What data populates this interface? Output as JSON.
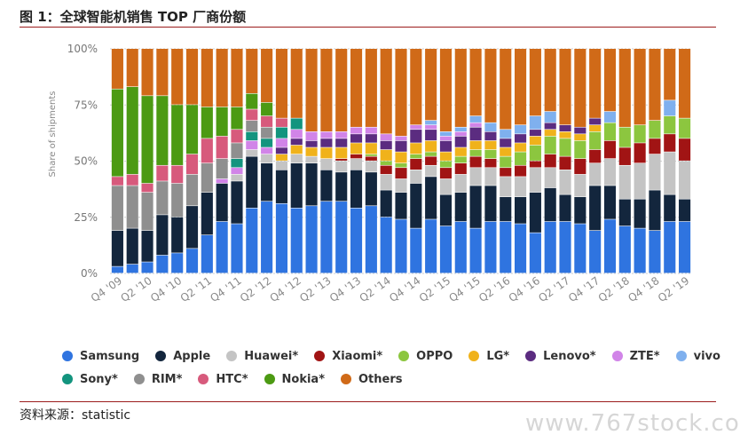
{
  "header": {
    "title": "图 1：全球智能机销售 TOP 厂商份额"
  },
  "footer": {
    "source": "资料来源：statistic",
    "watermark": "www.767stock.com"
  },
  "colors": {
    "Samsung": "#2f74e0",
    "Apple": "#13263d",
    "Huawei": "#c4c4c4",
    "Xiaomi": "#a11414",
    "OPPO": "#8cc63f",
    "LG": "#f0b21b",
    "Lenovo": "#5b2c80",
    "ZTE": "#d184e8",
    "vivo": "#7fb0ee",
    "Sony": "#13947e",
    "RIM": "#8f8f8f",
    "HTC": "#d75a7c",
    "Nokia": "#4c9a13",
    "Others": "#d06a18"
  },
  "chart_data": {
    "type": "bar",
    "stacked": true,
    "ylabel": "Share of shipments",
    "ylim": [
      0,
      100
    ],
    "yticks": [
      "0%",
      "25%",
      "50%",
      "75%",
      "100%"
    ],
    "categories": [
      "Q4 '09",
      "Q1 '10",
      "Q2 '10",
      "Q3 '10",
      "Q4 '10",
      "Q1 '11",
      "Q2 '11",
      "Q3 '11",
      "Q4 '11",
      "Q1 '12",
      "Q2 '12",
      "Q3 '12",
      "Q4 '12",
      "Q1 '13",
      "Q2 '13",
      "Q3 '13",
      "Q4 '13",
      "Q1 '14",
      "Q2 '14",
      "Q3 '14",
      "Q4 '14",
      "Q1 '15",
      "Q2 '15",
      "Q3 '15",
      "Q4 '15",
      "Q1 '16",
      "Q2 '16",
      "Q3 '16",
      "Q4 '16",
      "Q1 '17",
      "Q2 '17",
      "Q3 '17",
      "Q4 '17",
      "Q1 '18",
      "Q2 '18",
      "Q3 '18",
      "Q4 '18",
      "Q1 '19",
      "Q2 '19"
    ],
    "xtick_labels": [
      "Q4 '09",
      "Q2 '10",
      "Q4 '10",
      "Q2 '11",
      "Q4 '11",
      "Q2 '12",
      "Q4 '12",
      "Q2 '13",
      "Q4 '13",
      "Q2 '14",
      "Q4 '14",
      "Q2 '15",
      "Q4 '15",
      "Q2 '16",
      "Q4 '16",
      "Q2 '17",
      "Q4 '17",
      "Q2 '18",
      "Q4 '18",
      "Q2 '19"
    ],
    "legend": {
      "position": "bottom",
      "entries": [
        "Samsung",
        "Apple",
        "Huawei*",
        "Xiaomi*",
        "OPPO",
        "LG*",
        "Lenovo*",
        "ZTE*",
        "vivo",
        "Sony*",
        "RIM*",
        "HTC*",
        "Nokia*",
        "Others"
      ]
    },
    "series": [
      {
        "key": "Samsung",
        "name": "Samsung",
        "values": [
          3,
          4,
          5,
          8,
          9,
          11,
          17,
          23,
          22,
          29,
          32,
          31,
          29,
          30,
          32,
          32,
          29,
          30,
          25,
          24,
          20,
          24,
          21,
          23,
          20,
          23,
          23,
          22,
          18,
          23,
          23,
          22,
          19,
          24,
          21,
          20,
          19,
          23,
          23
        ]
      },
      {
        "key": "Apple",
        "name": "Apple",
        "values": [
          16,
          16,
          14,
          18,
          16,
          19,
          19,
          17,
          19,
          23,
          17,
          15,
          20,
          19,
          14,
          13,
          17,
          15,
          12,
          12,
          20,
          19,
          14,
          13,
          19,
          16,
          11,
          12,
          18,
          15,
          12,
          12,
          20,
          15,
          12,
          13,
          18,
          12,
          10
        ]
      },
      {
        "key": "Huawei",
        "name": "Huawei*",
        "values": [
          0,
          0,
          0,
          0,
          0,
          0,
          0,
          0,
          3,
          3,
          4,
          4,
          4,
          3,
          5,
          5,
          5,
          5,
          7,
          6,
          6,
          5,
          7,
          8,
          8,
          8,
          9,
          9,
          11,
          9,
          11,
          10,
          10,
          12,
          15,
          16,
          16,
          19,
          17
        ]
      },
      {
        "key": "Xiaomi",
        "name": "Xiaomi*",
        "values": [
          0,
          0,
          0,
          0,
          0,
          0,
          0,
          0,
          0,
          0,
          0,
          0,
          0,
          0,
          0,
          1,
          2,
          2,
          4,
          5,
          5,
          4,
          5,
          5,
          5,
          4,
          4,
          5,
          3,
          6,
          6,
          7,
          6,
          8,
          8,
          9,
          7,
          8,
          10
        ]
      },
      {
        "key": "OPPO",
        "name": "OPPO",
        "values": [
          0,
          0,
          0,
          0,
          0,
          0,
          0,
          0,
          0,
          0,
          0,
          0,
          0,
          0,
          0,
          0,
          0,
          1,
          2,
          2,
          2,
          2,
          3,
          3,
          3,
          4,
          5,
          6,
          7,
          8,
          8,
          8,
          8,
          8,
          9,
          8,
          8,
          8,
          9
        ]
      },
      {
        "key": "LG",
        "name": "LG*",
        "values": [
          0,
          0,
          0,
          0,
          0,
          0,
          0,
          0,
          0,
          0,
          0,
          3,
          4,
          4,
          5,
          5,
          5,
          5,
          5,
          5,
          5,
          5,
          4,
          4,
          4,
          4,
          4,
          4,
          4,
          3,
          3,
          3,
          3,
          0,
          0,
          0,
          0,
          0,
          0
        ]
      },
      {
        "key": "Lenovo",
        "name": "Lenovo*",
        "values": [
          0,
          0,
          0,
          0,
          0,
          0,
          0,
          0,
          0,
          0,
          0,
          3,
          3,
          3,
          4,
          4,
          4,
          4,
          4,
          5,
          6,
          5,
          5,
          5,
          6,
          4,
          4,
          4,
          3,
          3,
          3,
          3,
          3,
          0,
          0,
          0,
          0,
          0,
          0
        ]
      },
      {
        "key": "ZTE",
        "name": "ZTE*",
        "values": [
          0,
          0,
          0,
          0,
          0,
          0,
          0,
          2,
          3,
          4,
          3,
          4,
          4,
          4,
          3,
          3,
          3,
          3,
          3,
          2,
          2,
          2,
          2,
          2,
          2,
          0,
          0,
          0,
          0,
          0,
          0,
          0,
          0,
          0,
          0,
          0,
          0,
          0,
          0
        ]
      },
      {
        "key": "vivo",
        "name": "vivo",
        "values": [
          0,
          0,
          0,
          0,
          0,
          0,
          0,
          0,
          0,
          0,
          0,
          0,
          0,
          0,
          0,
          0,
          0,
          0,
          0,
          0,
          0,
          2,
          2,
          2,
          3,
          4,
          4,
          4,
          6,
          5,
          0,
          0,
          0,
          5,
          0,
          0,
          0,
          7,
          0
        ]
      },
      {
        "key": "Sony",
        "name": "Sony*",
        "values": [
          0,
          0,
          0,
          0,
          0,
          0,
          0,
          0,
          4,
          4,
          4,
          5,
          5,
          0,
          0,
          0,
          0,
          0,
          0,
          0,
          0,
          0,
          0,
          0,
          0,
          0,
          0,
          0,
          0,
          0,
          0,
          0,
          0,
          0,
          0,
          0,
          0,
          0,
          0
        ]
      },
      {
        "key": "RIM",
        "name": "RIM*",
        "values": [
          20,
          19,
          17,
          15,
          15,
          14,
          13,
          9,
          7,
          5,
          5,
          0,
          0,
          0,
          0,
          0,
          0,
          0,
          0,
          0,
          0,
          0,
          0,
          0,
          0,
          0,
          0,
          0,
          0,
          0,
          0,
          0,
          0,
          0,
          0,
          0,
          0,
          0,
          0
        ]
      },
      {
        "key": "HTC",
        "name": "HTC*",
        "values": [
          4,
          5,
          4,
          7,
          8,
          9,
          11,
          10,
          6,
          5,
          5,
          4,
          0,
          0,
          0,
          0,
          0,
          0,
          0,
          0,
          0,
          0,
          0,
          0,
          0,
          0,
          0,
          0,
          0,
          0,
          0,
          0,
          0,
          0,
          0,
          0,
          0,
          0,
          0
        ]
      },
      {
        "key": "Nokia",
        "name": "Nokia*",
        "values": [
          39,
          39,
          39,
          31,
          27,
          22,
          14,
          13,
          10,
          7,
          6,
          0,
          0,
          0,
          0,
          0,
          0,
          0,
          0,
          0,
          0,
          0,
          0,
          0,
          0,
          0,
          0,
          0,
          0,
          0,
          0,
          0,
          0,
          0,
          0,
          0,
          0,
          0,
          0
        ]
      },
      {
        "key": "Others",
        "name": "Others",
        "values": [
          18,
          17,
          21,
          21,
          25,
          25,
          26,
          26,
          26,
          20,
          24,
          31,
          31,
          37,
          37,
          37,
          35,
          35,
          38,
          39,
          34,
          32,
          37,
          35,
          30,
          33,
          36,
          34,
          30,
          28,
          34,
          35,
          31,
          28,
          35,
          34,
          32,
          23,
          31
        ]
      }
    ]
  }
}
